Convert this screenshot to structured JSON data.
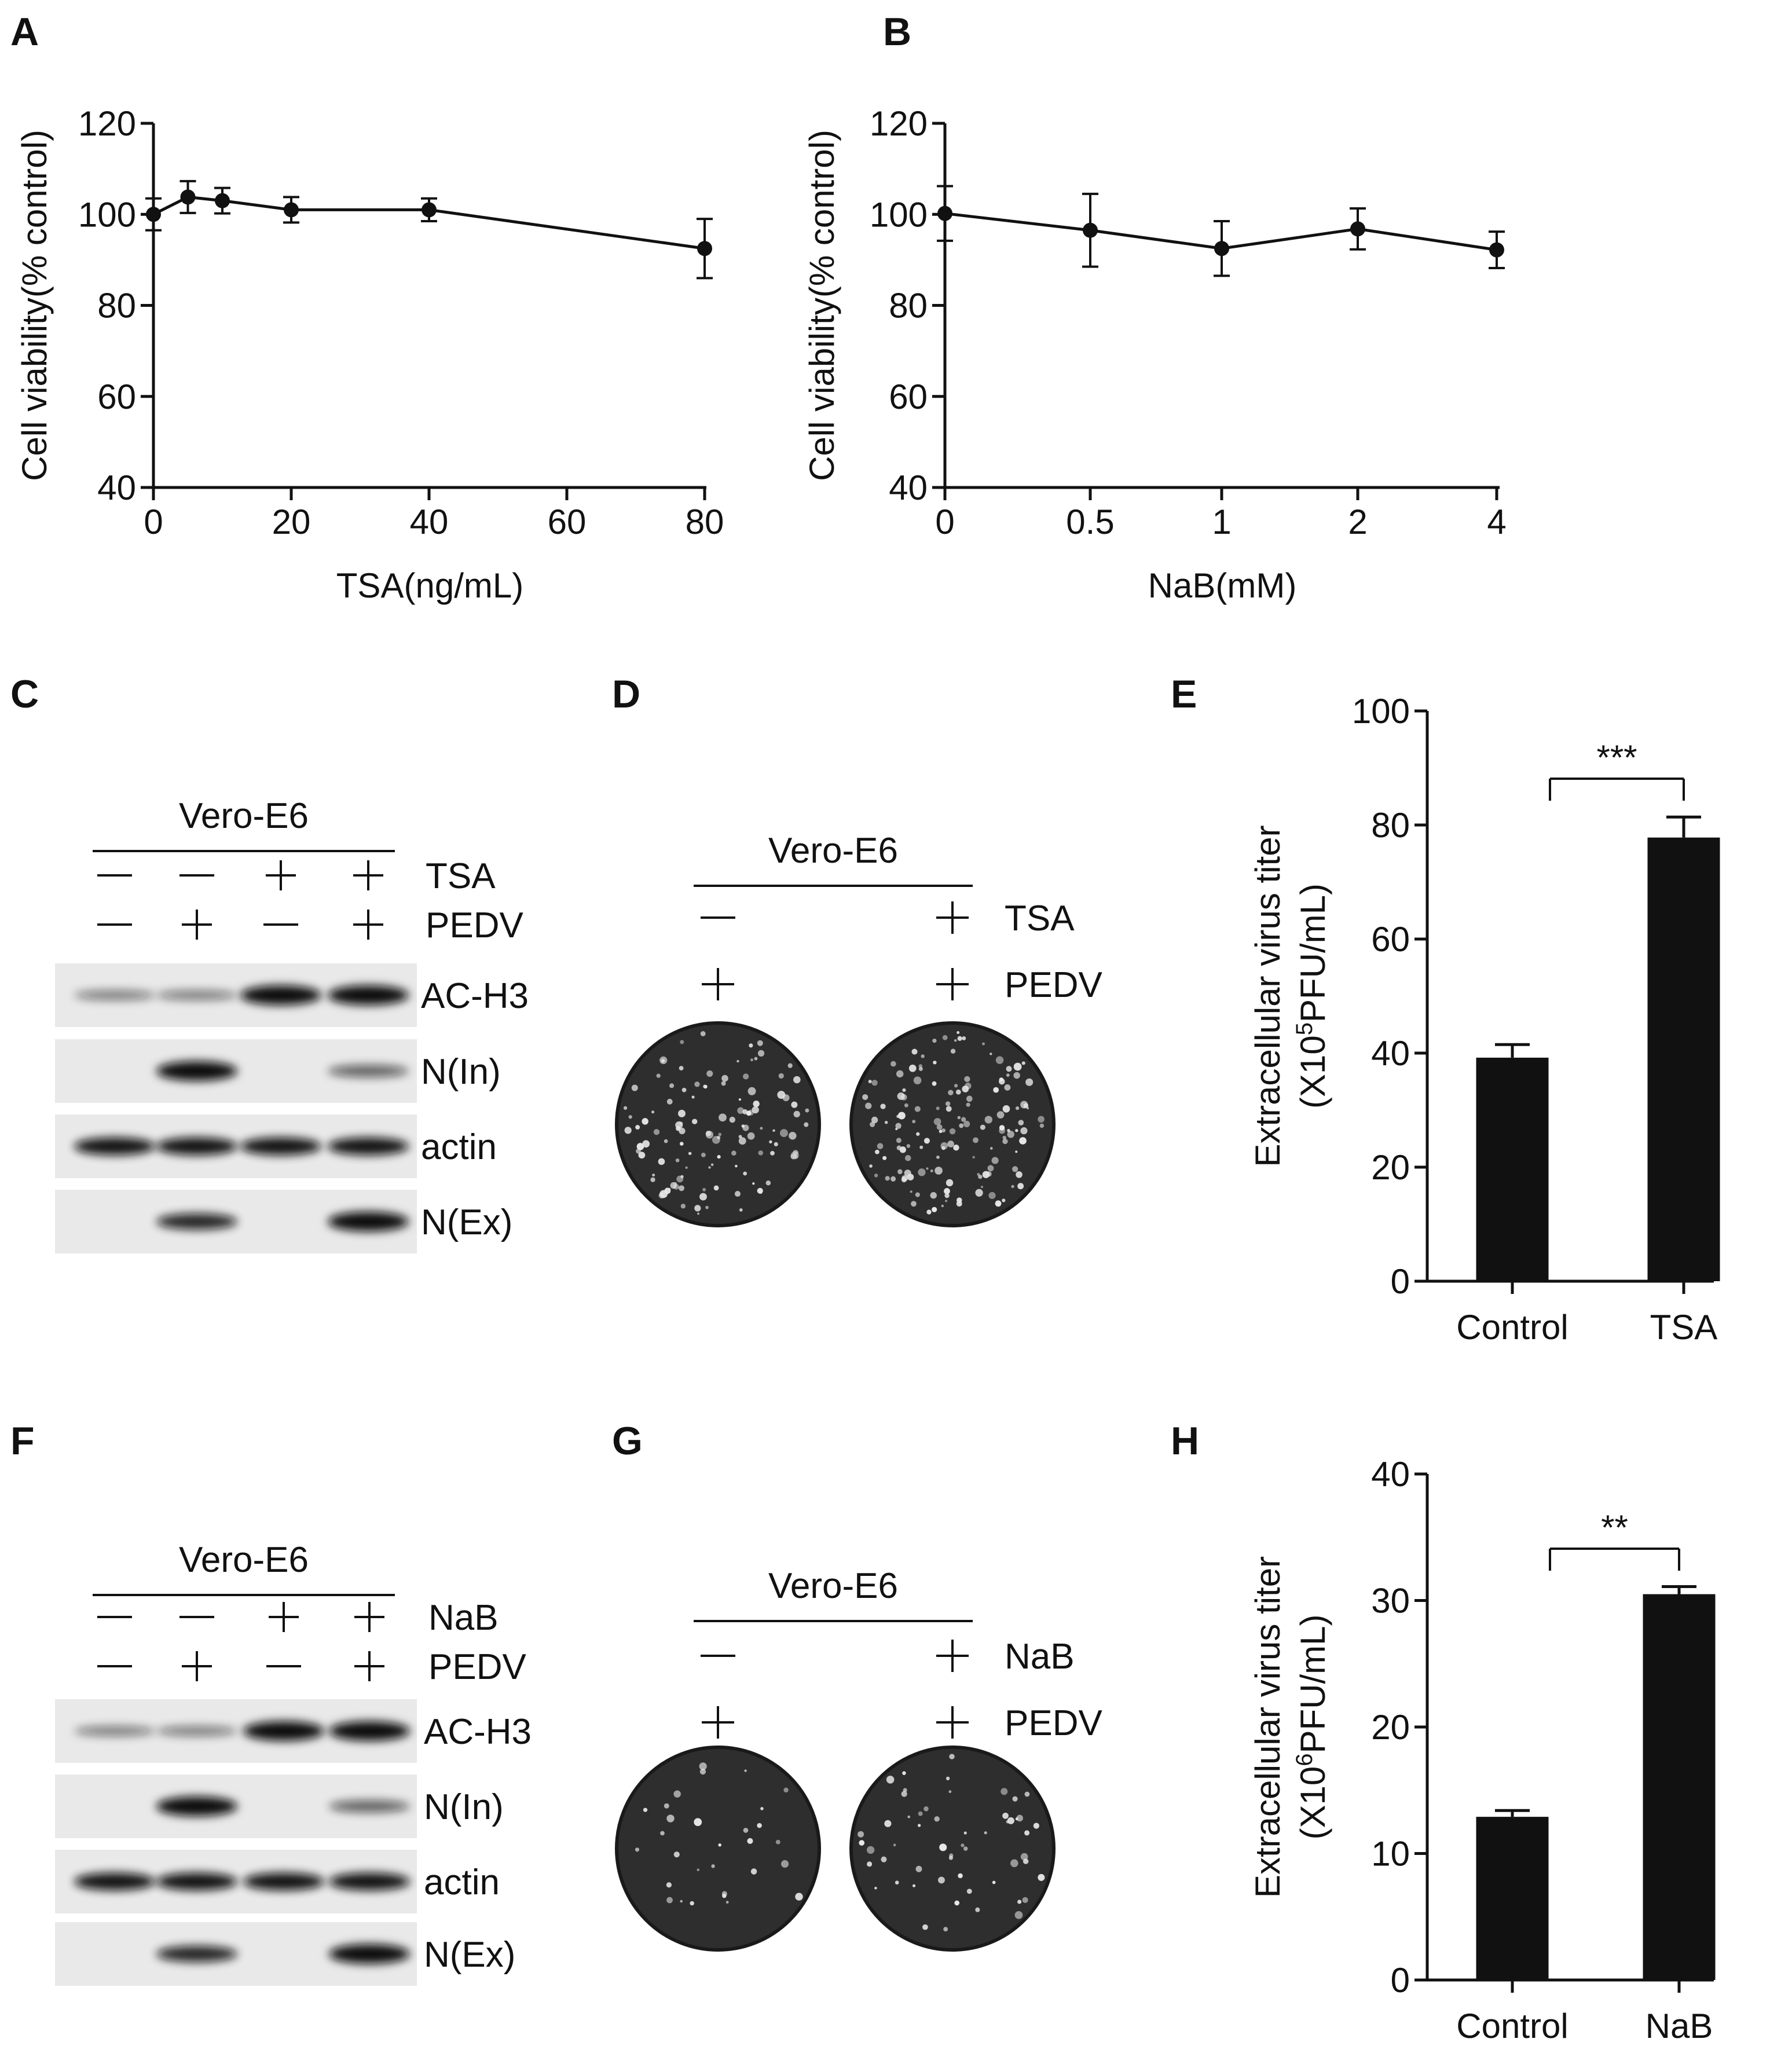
{
  "panels": {
    "A": "A",
    "B": "B",
    "C": "C",
    "D": "D",
    "E": "E",
    "F": "F",
    "G": "G",
    "H": "H"
  },
  "charts": {
    "A": {
      "type": "line",
      "xlabel": "TSA(ng/mL)",
      "ylabel": "Cell viability(% control)",
      "ylim": [
        40,
        120
      ],
      "yticks": [
        "40",
        "60",
        "80",
        "100",
        "120"
      ],
      "xticks": [
        "0",
        "20",
        "40",
        "60",
        "80"
      ],
      "x": [
        0,
        5,
        10,
        20,
        40,
        80
      ],
      "y": [
        100,
        103.8,
        103,
        101,
        101,
        92.5
      ],
      "err": [
        3.5,
        3.5,
        2.8,
        2.8,
        2.5,
        6.5
      ]
    },
    "B": {
      "type": "line",
      "xlabel": "NaB(mM)",
      "ylabel": "Cell viability(% control)",
      "ylim": [
        40,
        120
      ],
      "yticks": [
        "40",
        "60",
        "80",
        "100",
        "120"
      ],
      "xticks": [
        "0",
        "0.5",
        "1",
        "2",
        "4"
      ],
      "x_categories": [
        "0",
        "0.5",
        "1",
        "2",
        "4"
      ],
      "y": [
        100.2,
        96.5,
        92.5,
        96.8,
        92.2
      ],
      "err": [
        6,
        8,
        6,
        4.5,
        4
      ]
    },
    "E": {
      "type": "bar",
      "ylabel1": "Extracellular virus titer",
      "ylabel2_pre": "(X10",
      "ylabel2_sup": "5",
      "ylabel2_post": "PFU/mL)",
      "categories": [
        "Control",
        "TSA"
      ],
      "values": [
        39.2,
        77.8
      ],
      "err": [
        2.3,
        3.6
      ],
      "ylim": [
        0,
        100
      ],
      "yticks": [
        "0",
        "20",
        "40",
        "60",
        "80",
        "100"
      ],
      "sig": "***"
    },
    "H": {
      "type": "bar",
      "ylabel1": "Extracellular virus titer",
      "ylabel2_pre": "(X10",
      "ylabel2_sup": "6",
      "ylabel2_post": "PFU/mL)",
      "categories": [
        "Control",
        "NaB"
      ],
      "values": [
        12.9,
        30.5
      ],
      "err": [
        0.5,
        0.6
      ],
      "ylim": [
        0,
        40
      ],
      "yticks": [
        "0",
        "10",
        "20",
        "30",
        "40"
      ],
      "sig": "**"
    }
  },
  "blots": {
    "C": {
      "cell_line": "Vero-E6",
      "treatments": [
        {
          "name": "TSA",
          "signs": [
            "—",
            "—",
            "+",
            "+"
          ]
        },
        {
          "name": "PEDV",
          "signs": [
            "—",
            "+",
            "—",
            "+"
          ]
        }
      ],
      "rows": [
        "AC-H3",
        "N(In)",
        "actin",
        "N(Ex)"
      ]
    },
    "F": {
      "cell_line": "Vero-E6",
      "treatments": [
        {
          "name": "NaB",
          "signs": [
            "—",
            "—",
            "+",
            "+"
          ]
        },
        {
          "name": "PEDV",
          "signs": [
            "—",
            "+",
            "—",
            "+"
          ]
        }
      ],
      "rows": [
        "AC-H3",
        "N(In)",
        "actin",
        "N(Ex)"
      ]
    }
  },
  "plaques": {
    "D": {
      "cell_line": "Vero-E6",
      "treatments": [
        {
          "name": "TSA",
          "signs": [
            "—",
            "+"
          ]
        },
        {
          "name": "PEDV",
          "signs": [
            "+",
            "+"
          ]
        }
      ]
    },
    "G": {
      "cell_line": "Vero-E6",
      "treatments": [
        {
          "name": "NaB",
          "signs": [
            "—",
            "+"
          ]
        },
        {
          "name": "PEDV",
          "signs": [
            "+",
            "+"
          ]
        }
      ]
    }
  },
  "chart_data": [
    {
      "type": "line",
      "title": "",
      "xlabel": "TSA(ng/mL)",
      "ylabel": "Cell viability(% control)",
      "x": [
        0,
        5,
        10,
        20,
        40,
        80
      ],
      "y": [
        100,
        103.8,
        103,
        101,
        101,
        92.5
      ],
      "ylim": [
        40,
        120
      ]
    },
    {
      "type": "line",
      "title": "",
      "xlabel": "NaB(mM)",
      "ylabel": "Cell viability(% control)",
      "categories": [
        "0",
        "0.5",
        "1",
        "2",
        "4"
      ],
      "y": [
        100.2,
        96.5,
        92.5,
        96.8,
        92.2
      ],
      "ylim": [
        40,
        120
      ]
    },
    {
      "type": "bar",
      "title": "",
      "ylabel": "Extracellular virus titer (X10^5 PFU/mL)",
      "categories": [
        "Control",
        "TSA"
      ],
      "values": [
        39.2,
        77.8
      ],
      "ylim": [
        0,
        100
      ]
    },
    {
      "type": "bar",
      "title": "",
      "ylabel": "Extracellular virus titer (X10^6 PFU/mL)",
      "categories": [
        "Control",
        "NaB"
      ],
      "values": [
        12.9,
        30.5
      ],
      "ylim": [
        0,
        40
      ]
    }
  ]
}
